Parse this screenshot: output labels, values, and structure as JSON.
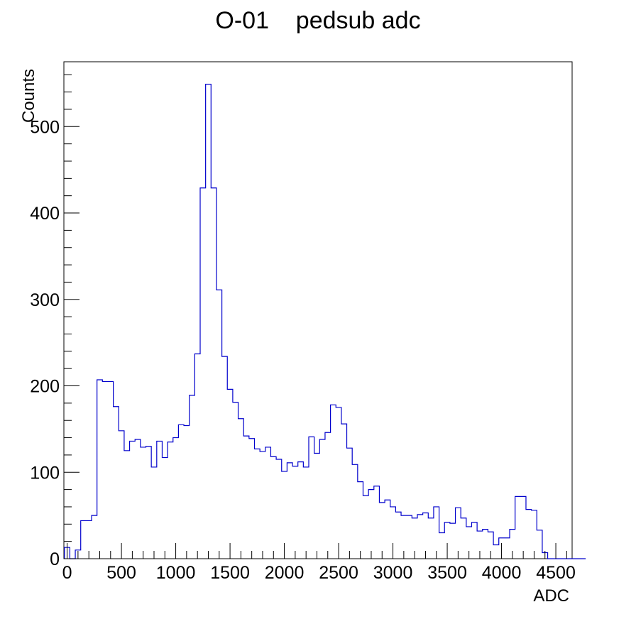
{
  "chart_data": {
    "type": "bar",
    "title": "O-01    pedsub adc",
    "xlabel": "ADC",
    "ylabel": "Counts",
    "xlim": [
      -30,
      4650
    ],
    "ylim": [
      0,
      575
    ],
    "bin_width": 50,
    "bin_start": -25,
    "x_ticks": [
      0,
      500,
      1000,
      1500,
      2000,
      2500,
      3000,
      3500,
      4000,
      4500
    ],
    "y_ticks": [
      0,
      100,
      200,
      300,
      400,
      500
    ],
    "line_color": "#0000cc",
    "grid": false,
    "values": [
      13,
      0,
      10,
      44,
      44,
      50,
      207,
      205,
      205,
      176,
      148,
      125,
      136,
      138,
      129,
      130,
      106,
      136,
      117,
      135,
      140,
      155,
      154,
      189,
      237,
      429,
      549,
      429,
      311,
      234,
      196,
      181,
      162,
      142,
      139,
      127,
      124,
      129,
      118,
      115,
      101,
      111,
      107,
      112,
      106,
      141,
      122,
      138,
      146,
      178,
      175,
      156,
      128,
      109,
      89,
      73,
      80,
      84,
      65,
      68,
      60,
      54,
      50,
      50,
      47,
      51,
      53,
      47,
      60,
      30,
      42,
      41,
      59,
      47,
      37,
      42,
      32,
      34,
      31,
      16,
      24,
      24,
      34,
      72,
      72,
      57,
      56,
      33,
      7,
      0,
      0,
      0,
      0,
      0,
      0,
      0
    ]
  }
}
